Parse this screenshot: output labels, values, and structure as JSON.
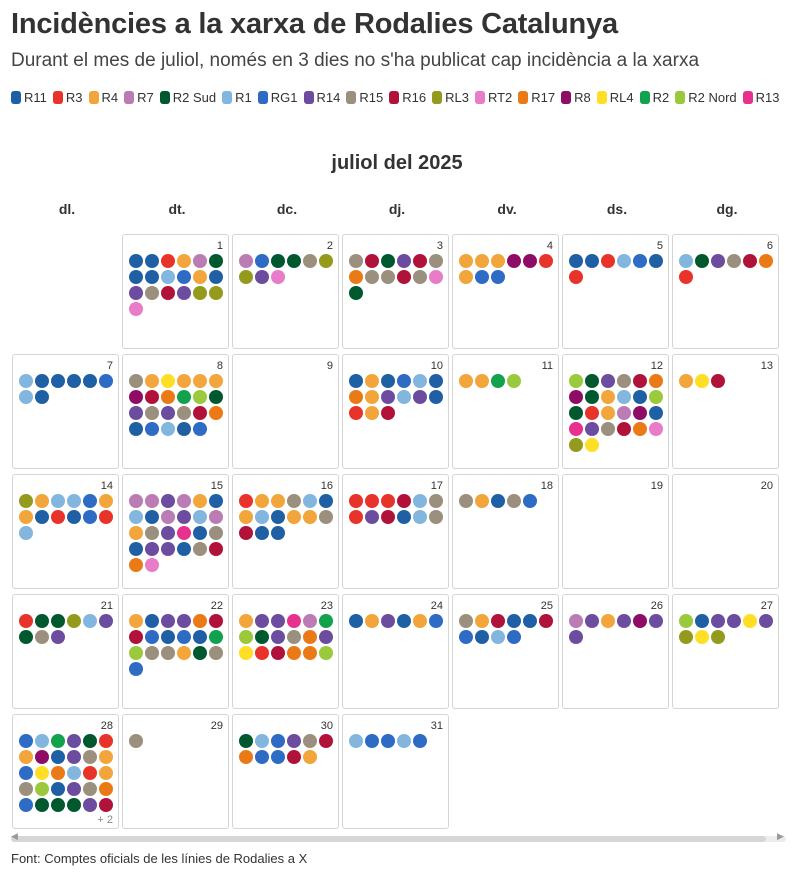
{
  "title": "Incidències a la xarxa de Rodalies Catalunya",
  "subtitle": "Durant el mes de juliol, només en 3 dies no s'ha publicat cap incidència a la xarxa",
  "footer": "Font: Comptes oficials de les línies de Rodalies a X",
  "chart_data": {
    "type": "calendar",
    "title": "Incidències a la xarxa de Rodalies Catalunya",
    "subtitle": "Durant el mes de juliol, només en 3 dies no s'ha publicat cap incidència a la xarxa",
    "month_title": "juliol del 2025",
    "weekdays": [
      "dl.",
      "dt.",
      "dc.",
      "dj.",
      "dv.",
      "ds.",
      "dg."
    ],
    "first_weekday_index": 1,
    "lines": [
      {
        "name": "R11",
        "color": "#1f5fa3"
      },
      {
        "name": "R3",
        "color": "#e8332a"
      },
      {
        "name": "R4",
        "color": "#f2a53a"
      },
      {
        "name": "R7",
        "color": "#bb7bb5"
      },
      {
        "name": "R2 Sud",
        "color": "#00592e"
      },
      {
        "name": "R1",
        "color": "#83b6de"
      },
      {
        "name": "RG1",
        "color": "#2d6bc4"
      },
      {
        "name": "R14",
        "color": "#6c4c9e"
      },
      {
        "name": "R15",
        "color": "#9b8f7d"
      },
      {
        "name": "R16",
        "color": "#b0123a"
      },
      {
        "name": "RL3",
        "color": "#949a1c"
      },
      {
        "name": "RT2",
        "color": "#e87cc8"
      },
      {
        "name": "R17",
        "color": "#ea7a16"
      },
      {
        "name": "R8",
        "color": "#8e0c65"
      },
      {
        "name": "RL4",
        "color": "#ffde26"
      },
      {
        "name": "R2",
        "color": "#12a14c"
      },
      {
        "name": "R2 Nord",
        "color": "#9bc93c"
      },
      {
        "name": "R13",
        "color": "#e8308e"
      }
    ],
    "days": [
      {
        "day": 1,
        "incidents": [
          "R11",
          "R11",
          "R3",
          "R4",
          "R7",
          "R2 Sud",
          "R11",
          "R11",
          "R1",
          "RG1",
          "R4",
          "R11",
          "R14",
          "R15",
          "R16",
          "R14",
          "RL3",
          "RL3",
          "RT2"
        ]
      },
      {
        "day": 2,
        "incidents": [
          "R7",
          "RG1",
          "R2 Sud",
          "R2 Sud",
          "R15",
          "RL3",
          "RL3",
          "R14",
          "RT2"
        ]
      },
      {
        "day": 3,
        "incidents": [
          "R15",
          "R16",
          "R2 Sud",
          "R14",
          "R16",
          "R15",
          "R17",
          "R15",
          "R15",
          "R16",
          "R15",
          "RT2",
          "R2 Sud"
        ]
      },
      {
        "day": 4,
        "incidents": [
          "R4",
          "R4",
          "R4",
          "R8",
          "R8",
          "R3",
          "R4",
          "RG1",
          "RG1"
        ]
      },
      {
        "day": 5,
        "incidents": [
          "R11",
          "R11",
          "R3",
          "R1",
          "RG1",
          "R11",
          "R3"
        ]
      },
      {
        "day": 6,
        "incidents": [
          "R1",
          "R2 Sud",
          "R14",
          "R15",
          "R16",
          "R17",
          "R3"
        ]
      },
      {
        "day": 7,
        "incidents": [
          "R1",
          "R11",
          "R11",
          "R11",
          "R11",
          "RG1",
          "R1",
          "R11"
        ]
      },
      {
        "day": 8,
        "incidents": [
          "R15",
          "R4",
          "RL4",
          "R4",
          "R4",
          "R4",
          "R8",
          "R16",
          "R17",
          "R2",
          "R2 Nord",
          "R2 Sud",
          "R14",
          "R15",
          "R14",
          "R15",
          "R16",
          "R17",
          "R11",
          "RG1",
          "R1",
          "R11",
          "RG1"
        ]
      },
      {
        "day": 9,
        "incidents": []
      },
      {
        "day": 10,
        "incidents": [
          "R11",
          "R4",
          "R11",
          "RG1",
          "R1",
          "R11",
          "R17",
          "R4",
          "R14",
          "R1",
          "R14",
          "R11",
          "R3",
          "R4",
          "R16"
        ]
      },
      {
        "day": 11,
        "incidents": [
          "R4",
          "R4",
          "R2",
          "R2 Nord"
        ]
      },
      {
        "day": 12,
        "incidents": [
          "R2 Nord",
          "R2 Sud",
          "R14",
          "R15",
          "R16",
          "R17",
          "R8",
          "R2 Sud",
          "R4",
          "R1",
          "R11",
          "R2 Nord",
          "R2 Sud",
          "R3",
          "R4",
          "R7",
          "R8",
          "R11",
          "R13",
          "R14",
          "R15",
          "R16",
          "R17",
          "RT2",
          "RL3",
          "RL4"
        ]
      },
      {
        "day": 13,
        "incidents": [
          "R4",
          "RL4",
          "R16"
        ]
      },
      {
        "day": 14,
        "incidents": [
          "RL3",
          "R4",
          "R1",
          "R1",
          "RG1",
          "R4",
          "R4",
          "R11",
          "R3",
          "R11",
          "RG1",
          "R3",
          "R1"
        ]
      },
      {
        "day": 15,
        "incidents": [
          "R7",
          "R7",
          "R14",
          "R7",
          "R4",
          "R11",
          "R1",
          "R11",
          "R7",
          "R14",
          "R1",
          "R7",
          "R4",
          "R15",
          "R14",
          "R13",
          "R11",
          "R15",
          "R11",
          "R14",
          "R14",
          "R11",
          "R15",
          "R16",
          "R17",
          "RT2"
        ]
      },
      {
        "day": 16,
        "incidents": [
          "R3",
          "R4",
          "R4",
          "R15",
          "R1",
          "R11",
          "R4",
          "R1",
          "R11",
          "R4",
          "R4",
          "R15",
          "R16",
          "R11",
          "R11"
        ]
      },
      {
        "day": 17,
        "incidents": [
          "R3",
          "R3",
          "R3",
          "R16",
          "R1",
          "R15",
          "R3",
          "R14",
          "R16",
          "R11",
          "R1",
          "R15"
        ]
      },
      {
        "day": 18,
        "incidents": [
          "R15",
          "R4",
          "R11",
          "R15",
          "RG1"
        ]
      },
      {
        "day": 19,
        "incidents": []
      },
      {
        "day": 20,
        "incidents": []
      },
      {
        "day": 21,
        "incidents": [
          "R3",
          "R2 Sud",
          "R2 Sud",
          "RL3",
          "R1",
          "R14",
          "R2 Sud",
          "R15",
          "R14"
        ]
      },
      {
        "day": 22,
        "incidents": [
          "R4",
          "R11",
          "R14",
          "R14",
          "R17",
          "R16",
          "R16",
          "RG1",
          "R11",
          "RG1",
          "R11",
          "R2",
          "R2 Nord",
          "R15",
          "R15",
          "R4",
          "R2 Sud",
          "R15",
          "RG1"
        ]
      },
      {
        "day": 23,
        "incidents": [
          "R4",
          "R14",
          "R14",
          "R13",
          "R7",
          "R2",
          "R2 Nord",
          "R2 Sud",
          "R14",
          "R15",
          "R17",
          "R14",
          "RL4",
          "R3",
          "R16",
          "R17",
          "R17",
          "R2 Nord"
        ]
      },
      {
        "day": 24,
        "incidents": [
          "R11",
          "R4",
          "R14",
          "R11",
          "R4",
          "RG1"
        ]
      },
      {
        "day": 25,
        "incidents": [
          "R15",
          "R4",
          "R16",
          "R11",
          "R11",
          "R16",
          "RG1",
          "R11",
          "R1",
          "RG1"
        ]
      },
      {
        "day": 26,
        "incidents": [
          "R7",
          "R14",
          "R4",
          "R14",
          "R8",
          "R14",
          "R14"
        ]
      },
      {
        "day": 27,
        "incidents": [
          "R2 Nord",
          "R11",
          "R14",
          "R14",
          "RL4",
          "R14",
          "RL3",
          "RL4",
          "RL3"
        ]
      },
      {
        "day": 28,
        "incidents": [
          "RG1",
          "R1",
          "R2",
          "R14",
          "R2 Sud",
          "R3",
          "R4",
          "R8",
          "R11",
          "R14",
          "R15",
          "R4",
          "RG1",
          "RL4",
          "R17",
          "R1",
          "R3",
          "R4",
          "R15",
          "R2 Nord",
          "R11",
          "R14",
          "R15",
          "R17",
          "RG1",
          "R2 Sud",
          "R2 Sud",
          "R2 Sud",
          "R14",
          "R16"
        ],
        "more": "+ 2"
      },
      {
        "day": 29,
        "incidents": [
          "R15"
        ]
      },
      {
        "day": 30,
        "incidents": [
          "R2 Sud",
          "R1",
          "RG1",
          "R14",
          "R15",
          "R16",
          "R17",
          "RG1",
          "RG1",
          "R16",
          "R4"
        ]
      },
      {
        "day": 31,
        "incidents": [
          "R1",
          "RG1",
          "RG1",
          "R1",
          "RG1"
        ]
      }
    ]
  }
}
